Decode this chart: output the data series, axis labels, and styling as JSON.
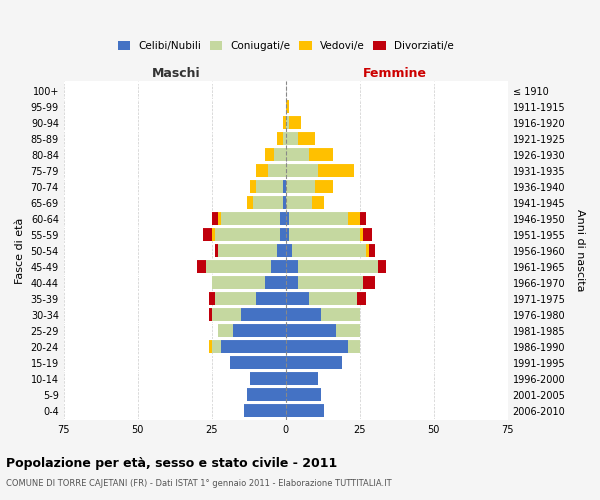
{
  "age_groups": [
    "0-4",
    "5-9",
    "10-14",
    "15-19",
    "20-24",
    "25-29",
    "30-34",
    "35-39",
    "40-44",
    "45-49",
    "50-54",
    "55-59",
    "60-64",
    "65-69",
    "70-74",
    "75-79",
    "80-84",
    "85-89",
    "90-94",
    "95-99",
    "100+"
  ],
  "birth_years": [
    "2006-2010",
    "2001-2005",
    "1996-2000",
    "1991-1995",
    "1986-1990",
    "1981-1985",
    "1976-1980",
    "1971-1975",
    "1966-1970",
    "1961-1965",
    "1956-1960",
    "1951-1955",
    "1946-1950",
    "1941-1945",
    "1936-1940",
    "1931-1935",
    "1926-1930",
    "1921-1925",
    "1916-1920",
    "1911-1915",
    "≤ 1910"
  ],
  "colors": {
    "celibi": "#4472c4",
    "coniugati": "#c5d8a0",
    "vedovi": "#ffc000",
    "divorziati": "#c0000c"
  },
  "maschi": {
    "celibi": [
      14,
      13,
      12,
      19,
      22,
      18,
      15,
      10,
      7,
      5,
      3,
      2,
      2,
      1,
      1,
      0,
      0,
      0,
      0,
      0,
      0
    ],
    "coniugati": [
      0,
      0,
      0,
      0,
      3,
      5,
      10,
      14,
      18,
      22,
      20,
      22,
      20,
      10,
      9,
      6,
      4,
      1,
      0,
      0,
      0
    ],
    "vedovi": [
      0,
      0,
      0,
      0,
      1,
      0,
      0,
      0,
      0,
      0,
      0,
      1,
      1,
      2,
      2,
      4,
      3,
      2,
      1,
      0,
      0
    ],
    "divorziati": [
      0,
      0,
      0,
      0,
      0,
      0,
      1,
      2,
      0,
      3,
      1,
      3,
      2,
      0,
      0,
      0,
      0,
      0,
      0,
      0,
      0
    ]
  },
  "femmine": {
    "celibi": [
      13,
      12,
      11,
      19,
      21,
      17,
      12,
      8,
      4,
      4,
      2,
      1,
      1,
      0,
      0,
      0,
      0,
      0,
      0,
      0,
      0
    ],
    "coniugati": [
      0,
      0,
      0,
      0,
      4,
      8,
      13,
      16,
      22,
      27,
      25,
      24,
      20,
      9,
      10,
      11,
      8,
      4,
      1,
      0,
      0
    ],
    "vedovi": [
      0,
      0,
      0,
      0,
      0,
      0,
      0,
      0,
      0,
      0,
      1,
      1,
      4,
      4,
      6,
      12,
      8,
      6,
      4,
      1,
      0
    ],
    "divorziati": [
      0,
      0,
      0,
      0,
      0,
      0,
      0,
      3,
      4,
      3,
      2,
      3,
      2,
      0,
      0,
      0,
      0,
      0,
      0,
      0,
      0
    ]
  },
  "xlim": 75,
  "title": "Popolazione per età, sesso e stato civile - 2011",
  "subtitle": "COMUNE DI TORRE CAJETANI (FR) - Dati ISTAT 1° gennaio 2011 - Elaborazione TUTTITALIA.IT",
  "ylabel_left": "Fasce di età",
  "ylabel_right": "Anni di nascita",
  "maschi_label": "Maschi",
  "femmine_label": "Femmine",
  "legend_labels": [
    "Celibi/Nubili",
    "Coniugati/e",
    "Vedovi/e",
    "Divorziati/e"
  ],
  "background_color": "#f5f5f5",
  "plot_background": "#ffffff",
  "femmine_color": "#333333"
}
